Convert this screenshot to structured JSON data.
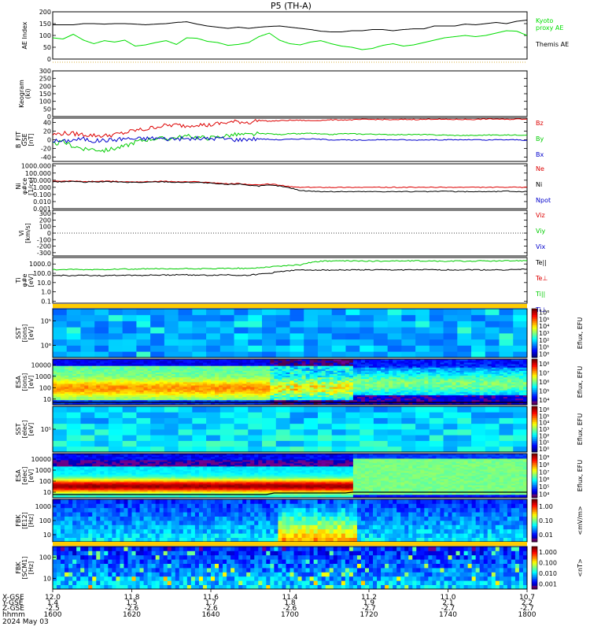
{
  "chart_data": {
    "type": "line",
    "title": "P5 (TH-A)",
    "panels": [
      {
        "id": "ae",
        "ylabel_lines": [
          "AE Index"
        ],
        "yticks": [
          0,
          50,
          100,
          150,
          200
        ],
        "ylim": [
          0,
          200
        ],
        "scale": "linear",
        "series": [
          {
            "name": "Kyoto\nproxy AE",
            "color": "#00dd00",
            "values": [
              90,
              85,
              105,
              80,
              65,
              78,
              72,
              80,
              55,
              60,
              70,
              78,
              62,
              90,
              88,
              75,
              70,
              58,
              62,
              70,
              95,
              110,
              80,
              65,
              60,
              72,
              78,
              65,
              55,
              50,
              40,
              45,
              58,
              65,
              55,
              60,
              70,
              80,
              90,
              95,
              100,
              95,
              100,
              110,
              120,
              118,
              100
            ]
          },
          {
            "name": "Themis AE",
            "color": "#000000",
            "values": [
              145,
              145,
              145,
              150,
              150,
              148,
              150,
              150,
              148,
              145,
              148,
              150,
              155,
              158,
              148,
              140,
              135,
              130,
              135,
              130,
              135,
              138,
              140,
              135,
              130,
              125,
              118,
              115,
              115,
              120,
              120,
              125,
              125,
              120,
              125,
              128,
              128,
              140,
              140,
              140,
              148,
              145,
              150,
              155,
              150,
              160,
              165
            ]
          }
        ]
      },
      {
        "id": "keogram",
        "ylabel_lines": [
          "Keogram",
          "(ki)"
        ],
        "yticks": [
          0,
          50,
          100,
          150,
          200,
          250,
          300
        ],
        "ylim": [
          0,
          300
        ],
        "scale": "linear",
        "series": []
      },
      {
        "id": "bfield",
        "ylabel_lines": [
          "B_FIT",
          "GSE",
          "[nT]"
        ],
        "yticks": [
          -40,
          -20,
          0,
          20,
          40
        ],
        "ylim": [
          -50,
          50
        ],
        "scale": "linear",
        "series": [
          {
            "name": "Bz",
            "color": "#dd0000",
            "values": [
              12,
              15,
              14,
              12,
              10,
              9,
              12,
              16,
              22,
              24,
              30,
              33,
              34,
              32,
              36,
              33,
              37,
              40,
              42,
              40,
              45,
              43,
              44,
              45,
              45,
              44,
              45,
              46,
              46,
              46,
              47,
              47,
              47,
              46,
              47,
              47,
              47,
              48,
              47,
              47,
              47,
              47,
              48,
              48,
              47,
              48,
              48
            ]
          },
          {
            "name": "By",
            "color": "#00cc00",
            "values": [
              -10,
              -5,
              -15,
              -20,
              -22,
              -25,
              -20,
              -15,
              -5,
              0,
              3,
              2,
              5,
              8,
              6,
              4,
              6,
              10,
              12,
              11,
              14,
              14,
              12,
              14,
              14,
              15,
              13,
              12,
              14,
              14,
              13,
              13,
              12,
              12,
              12,
              12,
              12,
              11,
              11,
              10,
              10,
              10,
              11,
              11,
              11,
              11,
              11
            ]
          },
          {
            "name": "Bx",
            "color": "#0000cc",
            "values": [
              -2,
              -4,
              0,
              2,
              -3,
              -1,
              0,
              3,
              2,
              3,
              4,
              2,
              3,
              2,
              3,
              2,
              4,
              2,
              0,
              2,
              2,
              1,
              0,
              1,
              2,
              2,
              1,
              0,
              0,
              -1,
              -1,
              0,
              0,
              0,
              0,
              -1,
              0,
              0,
              0,
              0,
              0,
              0,
              -1,
              0,
              0,
              0,
              -1
            ]
          }
        ]
      },
      {
        "id": "density",
        "ylabel_lines": [
          "Ni",
          "φ#ce",
          "[1/cc]"
        ],
        "yticks": [
          0.001,
          0.01,
          0.1,
          1,
          10,
          100,
          1000
        ],
        "yticklabels": [
          "0.001",
          "0.010",
          "0.100",
          "1.000",
          "10.000",
          "100.000",
          "1000.000"
        ],
        "ylim": [
          0.001,
          2000
        ],
        "scale": "log",
        "series": [
          {
            "name": "Ne",
            "color": "#dd0000",
            "values": [
              7,
              7,
              8,
              6,
              7,
              7,
              7,
              6,
              6,
              6,
              7,
              7,
              6,
              6,
              6,
              5,
              4,
              3,
              3.5,
              2.5,
              2,
              3,
              2,
              1.2,
              1,
              1,
              1,
              1,
              1,
              1,
              1,
              1,
              1,
              1,
              1,
              1,
              1,
              1,
              1,
              1,
              1,
              1,
              1,
              1,
              1,
              1,
              1
            ]
          },
          {
            "name": "Ni",
            "color": "#000000",
            "values": [
              6,
              6,
              7,
              5,
              6,
              6,
              6,
              5,
              5,
              5,
              6,
              6,
              5,
              5,
              5,
              4,
              3,
              2.5,
              3,
              2,
              1.5,
              2,
              1.5,
              0.8,
              0.35,
              0.3,
              0.25,
              0.25,
              0.25,
              0.25,
              0.25,
              0.25,
              0.25,
              0.25,
              0.25,
              0.25,
              0.25,
              0.25,
              0.3,
              0.25,
              0.25,
              0.25,
              0.25,
              0.25,
              0.3,
              0.25,
              0.25
            ]
          },
          {
            "name": "Npot",
            "color": "#0000cc",
            "values": []
          }
        ]
      },
      {
        "id": "velocity",
        "ylabel_lines": [
          "Vi",
          "[km/s]"
        ],
        "yticks": [
          -300,
          -200,
          -100,
          0,
          100,
          200,
          300
        ],
        "ylim": [
          -350,
          350
        ],
        "scale": "linear",
        "series": [
          {
            "name": "Viz",
            "color": "#dd0000",
            "values": []
          },
          {
            "name": "Viy",
            "color": "#00cc00",
            "values": []
          },
          {
            "name": "Vix",
            "color": "#0000cc",
            "values": []
          }
        ]
      },
      {
        "id": "temperature",
        "ylabel_lines": [
          "Ti",
          "φ#e",
          "[eV]"
        ],
        "yticks": [
          0.1,
          1,
          10,
          100,
          1000
        ],
        "yticklabels": [
          "0.1",
          "1.0",
          "10.0",
          "100.0",
          "1000.0"
        ],
        "ylim": [
          0.06,
          5000
        ],
        "scale": "log",
        "series": [
          {
            "name": "Te||",
            "color": "#000000",
            "values": [
              55,
              60,
              55,
              60,
              58,
              55,
              60,
              65,
              60,
              62,
              65,
              65,
              70,
              70,
              65,
              60,
              65,
              70,
              60,
              62,
              80,
              100,
              150,
              200,
              220,
              230,
              230,
              220,
              230,
              230,
              235,
              230,
              230,
              230,
              235,
              230,
              240,
              230,
              235,
              230,
              240,
              240,
              230,
              235,
              240,
              250,
              280
            ]
          },
          {
            "name": "Te⊥",
            "color": "#dd0000",
            "values": []
          },
          {
            "name": "Ti||",
            "color": "#00cc00",
            "values": [
              240,
              250,
              260,
              240,
              250,
              260,
              280,
              290,
              270,
              300,
              310,
              280,
              300,
              320,
              310,
              300,
              320,
              340,
              350,
              320,
              400,
              500,
              600,
              700,
              800,
              1500,
              2000,
              2200,
              2100,
              2200,
              2100,
              2000,
              2100,
              2200,
              2100,
              2200,
              2100,
              2100,
              1900,
              2100,
              2000,
              2100,
              2200,
              2100,
              2200,
              2300,
              2400
            ]
          },
          {
            "name": "Ti⊥",
            "color": "#0000cc",
            "values": []
          }
        ]
      },
      {
        "id": "sst-ion",
        "spectrogram": true,
        "ylabel_lines": [
          "SST",
          "[ions]",
          "[eV]"
        ],
        "yticklabels": [
          "10⁶",
          "10⁵"
        ],
        "colorbar": {
          "label": "Eflux, EFU",
          "ticks": [
            "10⁰",
            "10¹",
            "10²",
            "10³",
            "10⁴",
            "10⁵",
            "10⁶"
          ]
        }
      },
      {
        "id": "esa-ion",
        "spectrogram": true,
        "ylabel_lines": [
          "ESA",
          "[ions]",
          "[eV]"
        ],
        "yticklabels": [
          "10",
          "100",
          "1000",
          "10000"
        ],
        "colorbar": {
          "label": "Eflux, EFU",
          "ticks": [
            "10⁴",
            "10⁵",
            "10⁶",
            "10⁷",
            "10⁸"
          ]
        }
      },
      {
        "id": "sst-electron",
        "spectrogram": true,
        "ylabel_lines": [
          "SST",
          "[elec]",
          "[eV]"
        ],
        "yticklabels": [
          "10⁵"
        ],
        "colorbar": {
          "label": "Eflux, EFU",
          "ticks": [
            "10⁰",
            "10¹",
            "10²",
            "10³",
            "10⁴",
            "10⁵",
            "10⁶"
          ]
        }
      },
      {
        "id": "esa-electron",
        "spectrogram": true,
        "ylabel_lines": [
          "ESA",
          "[elec]",
          "[eV]"
        ],
        "yticklabels": [
          "10",
          "100",
          "1000",
          "10000"
        ],
        "colorbar": {
          "label": "Eflux, EFU",
          "ticks": [
            "10⁴",
            "10⁵",
            "10⁶",
            "10⁷",
            "10⁸",
            "10⁹"
          ]
        }
      },
      {
        "id": "fbk-e",
        "spectrogram": true,
        "ylabel_lines": [
          "FBK",
          "[E12]",
          "[Hz]"
        ],
        "yticklabels": [
          "10",
          "100",
          "1000"
        ],
        "colorbar": {
          "label": "<mV/m>",
          "ticks": [
            "0.01",
            "0.10",
            "1.00"
          ]
        }
      },
      {
        "id": "fbk-b",
        "spectrogram": true,
        "ylabel_lines": [
          "FBK",
          "[SCM1]",
          "[Hz]"
        ],
        "yticklabels": [
          "10",
          "100"
        ],
        "colorbar": {
          "label": "<nT>",
          "ticks": [
            "0.001",
            "0.010",
            "0.100",
            "1.000"
          ]
        }
      }
    ],
    "xaxis": {
      "row_labels": [
        "X-GSE",
        "Y-GSE",
        "Z-GSE",
        "hhmm",
        "2024 May 03"
      ],
      "ticks": [
        {
          "x": "12.0",
          "y": "1.4",
          "z": "-2.5",
          "time": "1600"
        },
        {
          "x": "11.8",
          "y": "1.5",
          "z": "-2.6",
          "time": "1620"
        },
        {
          "x": "11.6",
          "y": "1.7",
          "z": "-2.6",
          "time": "1640"
        },
        {
          "x": "11.4",
          "y": "1.8",
          "z": "-2.6",
          "time": "1700"
        },
        {
          "x": "11.2",
          "y": "1.9",
          "z": "-2.7",
          "time": "1720"
        },
        {
          "x": "11.0",
          "y": "2.1",
          "z": "-2.7",
          "time": "1740"
        },
        {
          "x": "10.7",
          "y": "2.2",
          "z": "-2.7",
          "time": "1800"
        }
      ]
    }
  }
}
